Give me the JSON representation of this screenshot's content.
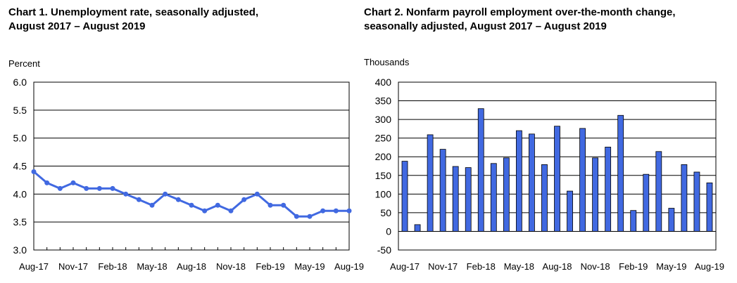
{
  "chart_data": [
    {
      "type": "line",
      "title": "Chart 1. Unemployment rate, seasonally adjusted,\nAugust 2017 – August 2019",
      "ylabel": "Percent",
      "ylim": [
        3.0,
        6.0
      ],
      "yticks": [
        "6.0",
        "5.5",
        "5.0",
        "4.5",
        "4.0",
        "3.5",
        "3.0"
      ],
      "ytick_values": [
        6.0,
        5.5,
        5.0,
        4.5,
        4.0,
        3.5,
        3.0
      ],
      "xtick_labels": [
        "Aug-17",
        "Nov-17",
        "Feb-18",
        "May-18",
        "Aug-18",
        "Nov-18",
        "Feb-19",
        "May-19",
        "Aug-19"
      ],
      "xtick_indices": [
        0,
        3,
        6,
        9,
        12,
        15,
        18,
        21,
        24
      ],
      "grid": true,
      "color": "#4169E1",
      "values": [
        4.4,
        4.2,
        4.1,
        4.2,
        4.1,
        4.1,
        4.1,
        4.0,
        3.9,
        3.8,
        4.0,
        3.9,
        3.8,
        3.7,
        3.8,
        3.7,
        3.9,
        4.0,
        3.8,
        3.8,
        3.6,
        3.6,
        3.7,
        3.7,
        3.7
      ]
    },
    {
      "type": "bar",
      "title": "Chart 2. Nonfarm payroll employment over-the-month change,\nseasonally adjusted, August 2017 – August 2019",
      "ylabel": "Thousands",
      "ylim": [
        -50,
        400
      ],
      "yticks": [
        "400",
        "350",
        "300",
        "250",
        "200",
        "150",
        "100",
        "50",
        "0",
        "-50"
      ],
      "ytick_values": [
        400,
        350,
        300,
        250,
        200,
        150,
        100,
        50,
        0,
        -50
      ],
      "xtick_labels": [
        "Aug-17",
        "Nov-17",
        "Feb-18",
        "May-18",
        "Aug-18",
        "Nov-18",
        "Feb-19",
        "May-19",
        "Aug-19"
      ],
      "xtick_indices": [
        0,
        3,
        6,
        9,
        12,
        15,
        18,
        21,
        24
      ],
      "grid": true,
      "color": "#4169E1",
      "values": [
        188,
        18,
        259,
        220,
        174,
        171,
        329,
        182,
        197,
        270,
        261,
        179,
        282,
        108,
        276,
        197,
        226,
        311,
        56,
        153,
        214,
        62,
        179,
        159,
        130
      ]
    }
  ]
}
